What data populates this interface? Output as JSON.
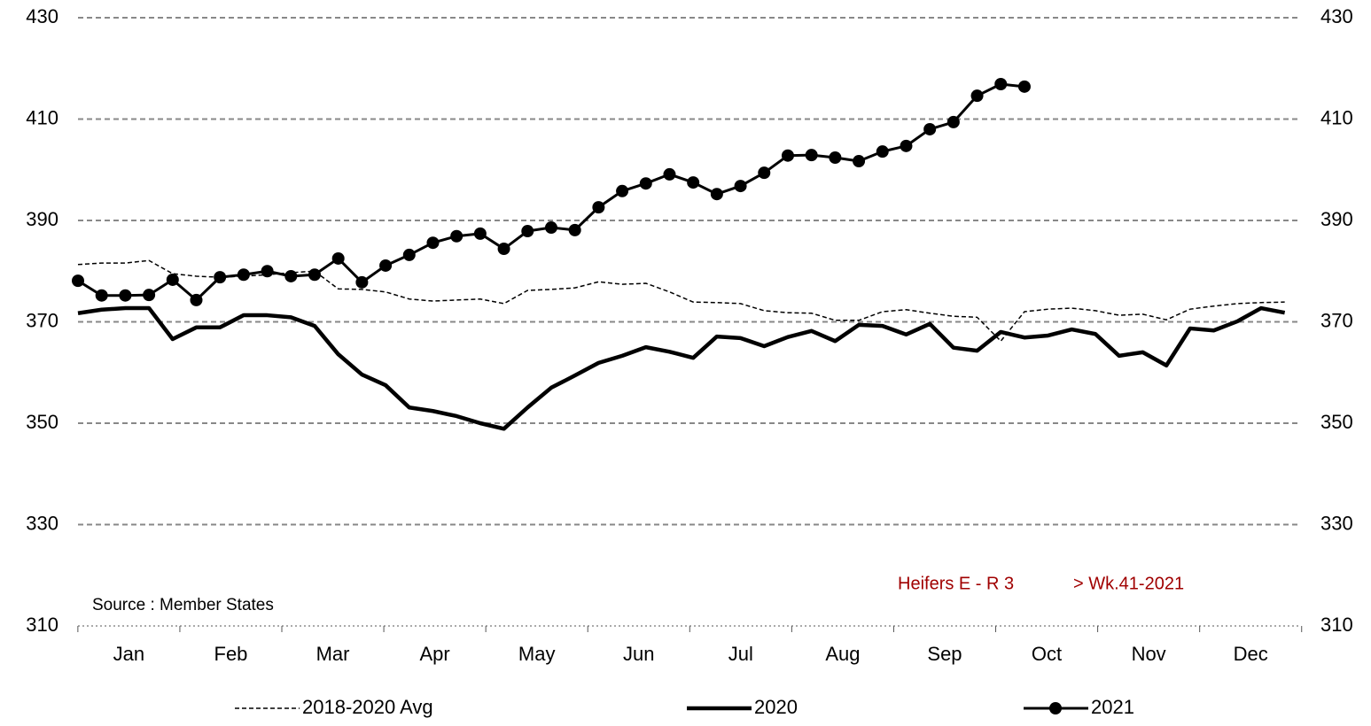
{
  "chart_data": {
    "type": "line",
    "source": "Source : Member States",
    "annotations": [
      "Heifers E - R 3",
      "> Wk.41-2021"
    ],
    "x": [
      1,
      2,
      3,
      4,
      5,
      6,
      7,
      8,
      9,
      10,
      11,
      12,
      13,
      14,
      15,
      16,
      17,
      18,
      19,
      20,
      21,
      22,
      23,
      24,
      25,
      26,
      27,
      28,
      29,
      30,
      31,
      32,
      33,
      34,
      35,
      36,
      37,
      38,
      39,
      40,
      41,
      42,
      43,
      44,
      45,
      46,
      47,
      48,
      49,
      50,
      51,
      52
    ],
    "xlim": [
      1,
      52.65
    ],
    "xticks": [
      {
        "value": 3.15,
        "label": "Jan"
      },
      {
        "value": 7.46,
        "label": "Feb"
      },
      {
        "value": 11.77,
        "label": "Mar"
      },
      {
        "value": 16.08,
        "label": "Apr"
      },
      {
        "value": 20.39,
        "label": "May"
      },
      {
        "value": 24.7,
        "label": "Jun"
      },
      {
        "value": 29.01,
        "label": "Jul"
      },
      {
        "value": 33.32,
        "label": "Aug"
      },
      {
        "value": 37.63,
        "label": "Sep"
      },
      {
        "value": 41.94,
        "label": "Oct"
      },
      {
        "value": 46.25,
        "label": "Nov"
      },
      {
        "value": 50.56,
        "label": "Dec"
      }
    ],
    "ylim": [
      310,
      430
    ],
    "yticks": [
      310,
      330,
      350,
      370,
      390,
      410,
      430
    ],
    "y2lim": [
      310,
      430
    ],
    "y2ticks": [
      310,
      330,
      350,
      370,
      390,
      410,
      430
    ],
    "grid": true,
    "legend": "bottom",
    "series": [
      {
        "name": "2018-2020 Avg",
        "color": "#000000",
        "style": "dashed",
        "width": 1.5,
        "values": [
          381.3,
          381.6,
          381.6,
          382.1,
          379.5,
          379.0,
          378.8,
          379.0,
          379.3,
          379.7,
          380.0,
          376.5,
          376.4,
          375.9,
          374.5,
          374.1,
          374.3,
          374.5,
          373.6,
          376.2,
          376.4,
          376.7,
          377.9,
          377.4,
          377.6,
          375.9,
          373.9,
          373.8,
          373.6,
          372.2,
          371.8,
          371.7,
          370.3,
          370.3,
          372.0,
          372.4,
          371.7,
          371.1,
          370.9,
          366.2,
          372.0,
          372.5,
          372.7,
          372.2,
          371.3,
          371.5,
          370.4,
          372.5,
          373.1,
          373.6,
          373.8,
          373.9
        ]
      },
      {
        "name": "2020",
        "color": "#000000",
        "style": "solid",
        "width": 4.5,
        "values": [
          371.7,
          372.4,
          372.7,
          372.7,
          366.6,
          368.9,
          368.9,
          371.3,
          371.3,
          370.9,
          369.2,
          363.6,
          359.6,
          357.5,
          353.1,
          352.4,
          351.4,
          350.0,
          348.9,
          353.1,
          357.0,
          359.4,
          361.9,
          363.3,
          365.0,
          364.1,
          362.9,
          367.1,
          366.8,
          365.2,
          367.0,
          368.2,
          366.2,
          369.4,
          369.2,
          367.5,
          369.6,
          364.9,
          364.3,
          368.0,
          366.9,
          367.3,
          368.5,
          367.6,
          363.3,
          364.0,
          361.4,
          368.7,
          368.3,
          370.1,
          372.7,
          371.8
        ]
      },
      {
        "name": "2021",
        "color": "#000000",
        "style": "solid",
        "width": 3,
        "marker": "circle",
        "values": [
          378.1,
          375.2,
          375.2,
          375.3,
          378.3,
          374.3,
          378.8,
          379.3,
          380.0,
          379.0,
          379.3,
          382.5,
          377.8,
          381.1,
          383.2,
          385.6,
          386.9,
          387.4,
          384.4,
          387.9,
          388.6,
          388.1,
          392.6,
          395.8,
          397.3,
          399.1,
          397.5,
          395.2,
          396.8,
          399.4,
          402.8,
          402.9,
          402.4,
          401.7,
          403.6,
          404.7,
          408.0,
          409.4,
          414.6,
          416.9,
          416.4,
          null,
          null,
          null,
          null,
          null,
          null,
          null,
          null,
          null,
          null,
          null
        ]
      }
    ]
  }
}
